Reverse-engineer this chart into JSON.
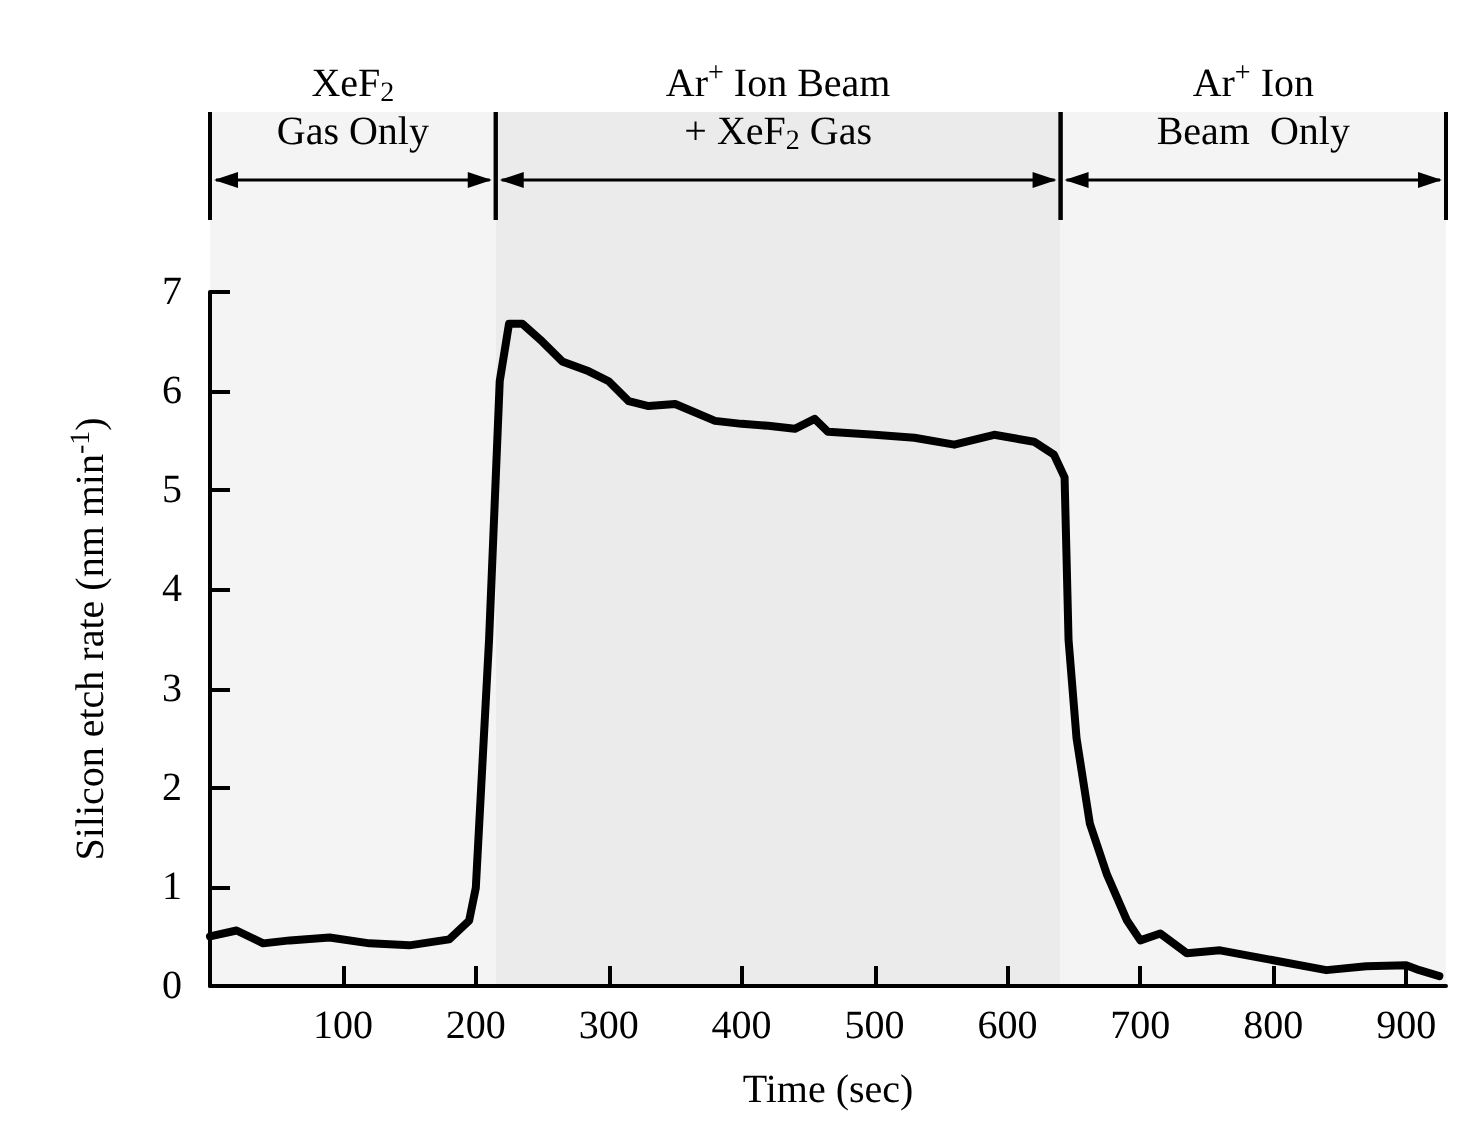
{
  "chart_data": {
    "type": "line",
    "xlabel": "Time (sec)",
    "ylabel": "Silicon etch rate (nm min$^{-1}$)",
    "xlim": [
      0,
      930
    ],
    "ylim": [
      0,
      7
    ],
    "xticks": [
      100,
      200,
      300,
      400,
      500,
      600,
      700,
      800,
      900
    ],
    "yticks": [
      0,
      1,
      2,
      3,
      4,
      5,
      6,
      7
    ],
    "grid": false,
    "marker": "none",
    "line_style": "solid",
    "bands": [
      {
        "axis": "x",
        "from": 0,
        "to": 215,
        "label": "XeF$_{2}$\nGas Only",
        "color": "#f4f4f4"
      },
      {
        "axis": "x",
        "from": 215,
        "to": 640,
        "label": "Ar$^{+}$ Ion Beam\n+ XeF$_{2}$ Gas",
        "color": "#ebebeb"
      },
      {
        "axis": "x",
        "from": 640,
        "to": 930,
        "label": "Ar$^{+}$ Ion\nBeam  Only",
        "color": "#f4f4f4"
      }
    ],
    "series": [
      {
        "color": "#000000",
        "x": [
          0,
          20,
          40,
          60,
          90,
          120,
          150,
          180,
          195,
          200,
          210,
          218,
          225,
          235,
          250,
          265,
          285,
          300,
          315,
          330,
          350,
          380,
          400,
          420,
          440,
          455,
          465,
          500,
          530,
          560,
          590,
          620,
          635,
          643,
          646,
          652,
          662,
          675,
          690,
          700,
          715,
          735,
          760,
          800,
          840,
          870,
          900,
          910,
          925
        ],
        "values": [
          0.5,
          0.56,
          0.43,
          0.46,
          0.49,
          0.43,
          0.41,
          0.47,
          0.66,
          0.99,
          3.5,
          6.1,
          6.68,
          6.68,
          6.5,
          6.3,
          6.2,
          6.1,
          5.9,
          5.85,
          5.87,
          5.7,
          5.67,
          5.65,
          5.62,
          5.72,
          5.59,
          5.56,
          5.53,
          5.46,
          5.56,
          5.49,
          5.36,
          5.13,
          3.49,
          2.5,
          1.64,
          1.12,
          0.66,
          0.46,
          0.53,
          0.33,
          0.36,
          0.26,
          0.16,
          0.2,
          0.21,
          0.16,
          0.1
        ]
      }
    ]
  }
}
